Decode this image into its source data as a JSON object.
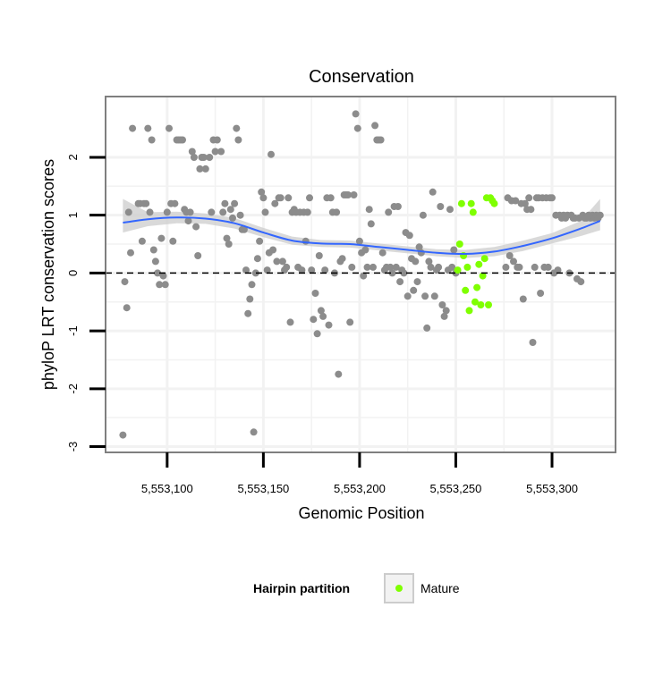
{
  "chart_data": {
    "type": "scatter",
    "title": "Conservation",
    "xlabel": "Genomic Position",
    "ylabel": "phyloP LRT conservation scores",
    "xlim": [
      5553068,
      5553333
    ],
    "ylim": [
      -3.1,
      3.05
    ],
    "x_ticks": [
      {
        "value": 5553100,
        "label": "5,553,100"
      },
      {
        "value": 5553150,
        "label": "5,553,150"
      },
      {
        "value": 5553200,
        "label": "5,553,200"
      },
      {
        "value": 5553250,
        "label": "5,553,250"
      },
      {
        "value": 5553300,
        "label": "5,553,300"
      }
    ],
    "y_ticks": [
      {
        "value": -3,
        "label": "-3"
      },
      {
        "value": -2,
        "label": "-2"
      },
      {
        "value": -1,
        "label": "-1"
      },
      {
        "value": 0,
        "label": "0"
      },
      {
        "value": 1,
        "label": "1"
      },
      {
        "value": 2,
        "label": "2"
      }
    ],
    "grid": true,
    "reference_line": {
      "y": 0,
      "style": "dashed"
    },
    "colors": {
      "background_points": "#8c8c8c",
      "mature": "#7fff00",
      "smooth_line": "#3366ff",
      "ribbon": "#cccccc",
      "grid": "#f2f2f2",
      "panel_border": "#7f7f7f"
    },
    "series": [
      {
        "values": [
          [
            5553077,
            -2.8
          ],
          [
            5553078,
            -0.15
          ],
          [
            5553079,
            -0.6
          ],
          [
            5553080,
            1.05
          ],
          [
            5553081,
            0.35
          ],
          [
            5553082,
            2.5
          ],
          [
            5553085,
            1.2
          ],
          [
            5553086,
            1.2
          ],
          [
            5553087,
            0.55
          ],
          [
            5553088,
            1.2
          ],
          [
            5553089,
            1.2
          ],
          [
            5553090,
            2.5
          ],
          [
            5553091,
            1.05
          ],
          [
            5553092,
            2.3
          ],
          [
            5553093,
            0.4
          ],
          [
            5553094,
            0.2
          ],
          [
            5553095,
            0.0
          ],
          [
            5553096,
            -0.2
          ],
          [
            5553097,
            0.6
          ],
          [
            5553098,
            -0.05
          ],
          [
            5553099,
            -0.2
          ],
          [
            5553100,
            1.05
          ],
          [
            5553101,
            2.5
          ],
          [
            5553102,
            1.2
          ],
          [
            5553103,
            0.55
          ],
          [
            5553104,
            1.2
          ],
          [
            5553105,
            2.3
          ],
          [
            5553106,
            2.3
          ],
          [
            5553107,
            2.3
          ],
          [
            5553108,
            2.3
          ],
          [
            5553109,
            1.1
          ],
          [
            5553110,
            1.05
          ],
          [
            5553111,
            0.9
          ],
          [
            5553112,
            1.05
          ],
          [
            5553113,
            2.1
          ],
          [
            5553114,
            2.0
          ],
          [
            5553115,
            0.8
          ],
          [
            5553116,
            0.3
          ],
          [
            5553117,
            1.8
          ],
          [
            5553118,
            2.0
          ],
          [
            5553119,
            2.0
          ],
          [
            5553120,
            1.8
          ],
          [
            5553122,
            2.0
          ],
          [
            5553123,
            1.05
          ],
          [
            5553124,
            2.3
          ],
          [
            5553125,
            2.1
          ],
          [
            5553126,
            2.3
          ],
          [
            5553128,
            2.1
          ],
          [
            5553129,
            1.05
          ],
          [
            5553130,
            1.2
          ],
          [
            5553131,
            0.6
          ],
          [
            5553132,
            0.5
          ],
          [
            5553133,
            1.1
          ],
          [
            5553134,
            0.95
          ],
          [
            5553135,
            1.2
          ],
          [
            5553136,
            2.5
          ],
          [
            5553137,
            2.3
          ],
          [
            5553138,
            1.0
          ],
          [
            5553139,
            0.75
          ],
          [
            5553140,
            0.75
          ],
          [
            5553141,
            0.05
          ],
          [
            5553142,
            -0.7
          ],
          [
            5553143,
            -0.45
          ],
          [
            5553144,
            -0.2
          ],
          [
            5553145,
            -2.75
          ],
          [
            5553146,
            0.0
          ],
          [
            5553147,
            0.25
          ],
          [
            5553148,
            0.55
          ],
          [
            5553149,
            1.4
          ],
          [
            5553150,
            1.3
          ],
          [
            5553151,
            1.05
          ],
          [
            5553152,
            0.05
          ],
          [
            5553153,
            0.35
          ],
          [
            5553154,
            2.05
          ],
          [
            5553155,
            0.4
          ],
          [
            5553156,
            1.2
          ],
          [
            5553157,
            0.2
          ],
          [
            5553158,
            1.3
          ],
          [
            5553159,
            1.3
          ],
          [
            5553160,
            0.2
          ],
          [
            5553161,
            0.05
          ],
          [
            5553162,
            0.1
          ],
          [
            5553163,
            1.3
          ],
          [
            5553164,
            -0.85
          ],
          [
            5553165,
            1.05
          ],
          [
            5553166,
            1.1
          ],
          [
            5553167,
            1.05
          ],
          [
            5553168,
            0.1
          ],
          [
            5553169,
            1.05
          ],
          [
            5553170,
            0.05
          ],
          [
            5553171,
            1.05
          ],
          [
            5553172,
            0.55
          ],
          [
            5553173,
            1.05
          ],
          [
            5553174,
            1.3
          ],
          [
            5553175,
            0.05
          ],
          [
            5553176,
            -0.8
          ],
          [
            5553177,
            -0.35
          ],
          [
            5553178,
            -1.05
          ],
          [
            5553179,
            0.3
          ],
          [
            5553180,
            -0.65
          ],
          [
            5553181,
            -0.75
          ],
          [
            5553182,
            0.05
          ],
          [
            5553183,
            1.3
          ],
          [
            5553184,
            -0.9
          ],
          [
            5553185,
            1.3
          ],
          [
            5553186,
            1.05
          ],
          [
            5553187,
            0.0
          ],
          [
            5553188,
            1.05
          ],
          [
            5553189,
            -1.75
          ],
          [
            5553190,
            0.2
          ],
          [
            5553191,
            0.25
          ],
          [
            5553192,
            1.35
          ],
          [
            5553193,
            1.35
          ],
          [
            5553194,
            1.35
          ],
          [
            5553195,
            -0.85
          ],
          [
            5553196,
            0.1
          ],
          [
            5553197,
            1.35
          ],
          [
            5553198,
            2.75
          ],
          [
            5553199,
            2.5
          ],
          [
            5553200,
            0.55
          ],
          [
            5553201,
            0.35
          ],
          [
            5553202,
            -0.05
          ],
          [
            5553203,
            0.4
          ],
          [
            5553204,
            0.1
          ],
          [
            5553205,
            1.1
          ],
          [
            5553206,
            0.85
          ],
          [
            5553207,
            0.1
          ],
          [
            5553208,
            2.55
          ],
          [
            5553209,
            2.3
          ],
          [
            5553210,
            2.3
          ],
          [
            5553211,
            2.3
          ],
          [
            5553212,
            0.35
          ],
          [
            5553213,
            0.05
          ],
          [
            5553214,
            0.1
          ],
          [
            5553215,
            1.05
          ],
          [
            5553216,
            0.1
          ],
          [
            5553217,
            0.0
          ],
          [
            5553218,
            1.15
          ],
          [
            5553219,
            0.1
          ],
          [
            5553220,
            1.15
          ],
          [
            5553221,
            -0.15
          ],
          [
            5553222,
            0.05
          ],
          [
            5553223,
            0.0
          ],
          [
            5553224,
            0.7
          ],
          [
            5553225,
            -0.4
          ],
          [
            5553226,
            0.65
          ],
          [
            5553227,
            0.25
          ],
          [
            5553228,
            -0.3
          ],
          [
            5553229,
            0.2
          ],
          [
            5553230,
            -0.15
          ],
          [
            5553231,
            0.45
          ],
          [
            5553232,
            0.35
          ],
          [
            5553233,
            1.0
          ],
          [
            5553234,
            -0.4
          ],
          [
            5553235,
            -0.95
          ],
          [
            5553236,
            0.2
          ],
          [
            5553237,
            0.1
          ],
          [
            5553238,
            1.4
          ],
          [
            5553239,
            -0.4
          ],
          [
            5553240,
            0.05
          ],
          [
            5553241,
            0.1
          ],
          [
            5553242,
            1.15
          ],
          [
            5553243,
            -0.55
          ],
          [
            5553244,
            -0.75
          ],
          [
            5553245,
            -0.65
          ],
          [
            5553246,
            0.05
          ],
          [
            5553247,
            1.1
          ],
          [
            5553248,
            0.1
          ],
          [
            5553249,
            0.4
          ],
          [
            5553250,
            0.0
          ],
          [
            5553276,
            0.1
          ],
          [
            5553277,
            1.3
          ],
          [
            5553278,
            0.3
          ],
          [
            5553279,
            1.25
          ],
          [
            5553280,
            0.2
          ],
          [
            5553281,
            1.25
          ],
          [
            5553282,
            0.1
          ],
          [
            5553283,
            0.1
          ],
          [
            5553284,
            1.2
          ],
          [
            5553285,
            -0.45
          ],
          [
            5553286,
            1.2
          ],
          [
            5553287,
            1.1
          ],
          [
            5553288,
            1.3
          ],
          [
            5553289,
            1.1
          ],
          [
            5553290,
            -1.2
          ],
          [
            5553291,
            0.1
          ],
          [
            5553292,
            1.3
          ],
          [
            5553293,
            1.3
          ],
          [
            5553294,
            -0.35
          ],
          [
            5553295,
            1.3
          ],
          [
            5553296,
            0.1
          ],
          [
            5553297,
            1.3
          ],
          [
            5553298,
            0.1
          ],
          [
            5553299,
            1.3
          ],
          [
            5553300,
            1.3
          ],
          [
            5553301,
            0.0
          ],
          [
            5553302,
            1.0
          ],
          [
            5553303,
            0.05
          ],
          [
            5553304,
            1.0
          ],
          [
            5553305,
            0.95
          ],
          [
            5553306,
            1.0
          ],
          [
            5553307,
            0.95
          ],
          [
            5553308,
            1.0
          ],
          [
            5553309,
            0.0
          ],
          [
            5553310,
            1.0
          ],
          [
            5553311,
            0.95
          ],
          [
            5553312,
            0.95
          ],
          [
            5553313,
            -0.1
          ],
          [
            5553314,
            0.95
          ],
          [
            5553315,
            -0.15
          ],
          [
            5553316,
            1.0
          ],
          [
            5553317,
            0.95
          ],
          [
            5553318,
            0.95
          ],
          [
            5553319,
            1.0
          ],
          [
            5553320,
            0.95
          ],
          [
            5553321,
            1.0
          ],
          [
            5553322,
            0.95
          ],
          [
            5553323,
            1.0
          ],
          [
            5553324,
            0.95
          ],
          [
            5553325,
            1.0
          ]
        ]
      },
      {
        "name": "Mature",
        "values": [
          [
            5553251,
            0.05
          ],
          [
            5553252,
            0.5
          ],
          [
            5553253,
            1.2
          ],
          [
            5553254,
            0.3
          ],
          [
            5553255,
            -0.3
          ],
          [
            5553256,
            0.1
          ],
          [
            5553257,
            -0.65
          ],
          [
            5553258,
            1.2
          ],
          [
            5553259,
            1.05
          ],
          [
            5553260,
            -0.5
          ],
          [
            5553261,
            -0.25
          ],
          [
            5553262,
            0.15
          ],
          [
            5553263,
            -0.55
          ],
          [
            5553264,
            -0.05
          ],
          [
            5553265,
            0.25
          ],
          [
            5553266,
            1.3
          ],
          [
            5553267,
            -0.55
          ],
          [
            5553268,
            1.3
          ],
          [
            5553269,
            1.25
          ],
          [
            5553270,
            1.2
          ]
        ]
      }
    ],
    "smooth": {
      "method": "loess",
      "x": [
        5553077,
        5553090,
        5553105,
        5553120,
        5553135,
        5553150,
        5553165,
        5553180,
        5553195,
        5553210,
        5553225,
        5553240,
        5553255,
        5553270,
        5553285,
        5553300,
        5553315,
        5553325
      ],
      "y": [
        0.87,
        0.93,
        0.96,
        0.94,
        0.86,
        0.7,
        0.56,
        0.51,
        0.5,
        0.45,
        0.4,
        0.35,
        0.33,
        0.37,
        0.47,
        0.6,
        0.77,
        0.9
      ],
      "ymin": [
        0.7,
        0.81,
        0.86,
        0.85,
        0.77,
        0.62,
        0.49,
        0.45,
        0.44,
        0.39,
        0.34,
        0.29,
        0.26,
        0.29,
        0.38,
        0.51,
        0.64,
        0.74
      ],
      "ymax": [
        1.28,
        1.05,
        1.06,
        1.03,
        0.95,
        0.78,
        0.63,
        0.57,
        0.56,
        0.51,
        0.46,
        0.41,
        0.4,
        0.45,
        0.56,
        0.69,
        0.9,
        1.28
      ]
    },
    "legend": {
      "title": "Hairpin partition",
      "position": "bottom",
      "items": [
        {
          "label": "Mature",
          "color": "#7fff00"
        }
      ]
    }
  }
}
